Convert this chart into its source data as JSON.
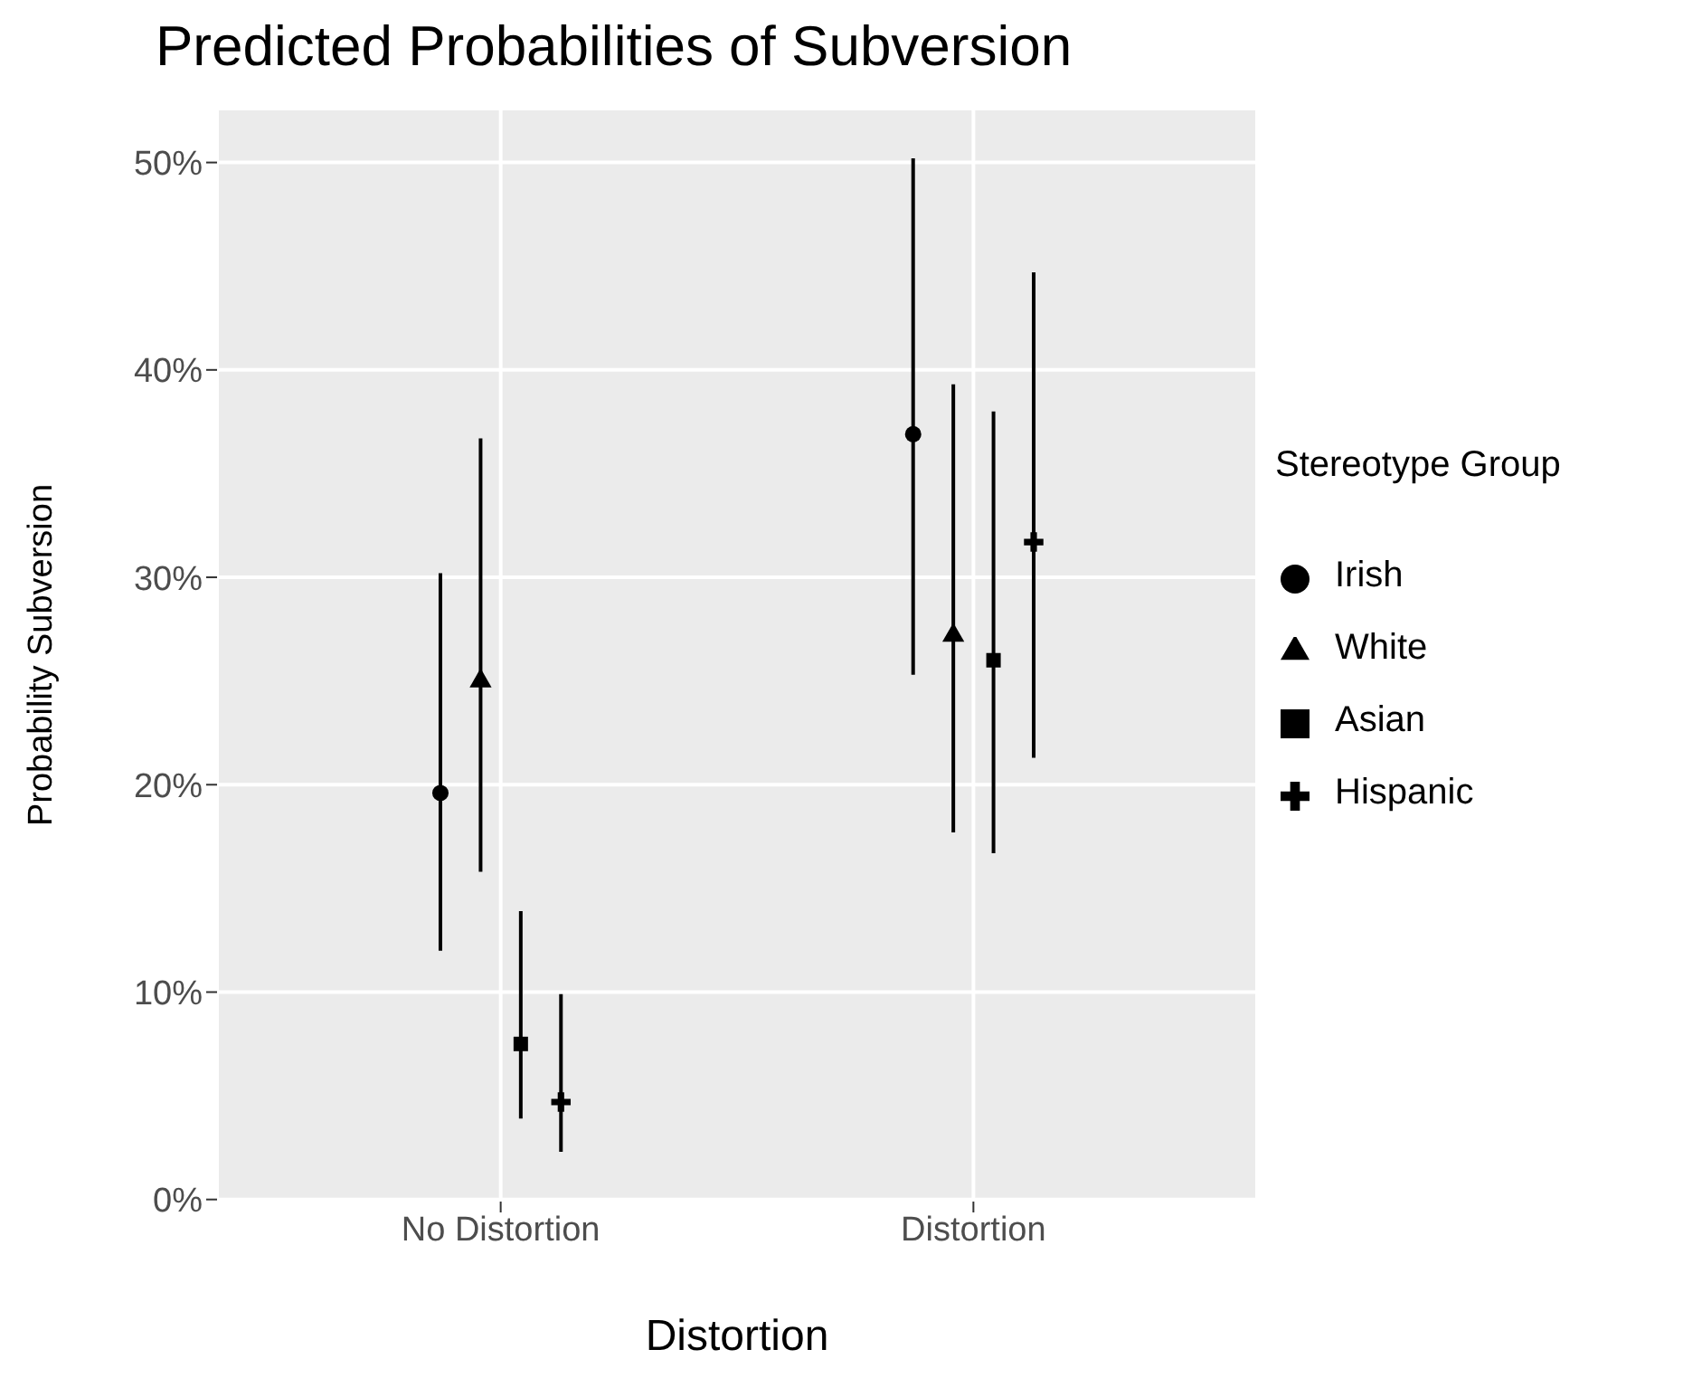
{
  "chart_data": {
    "type": "scatter",
    "title": "Predicted Probabilities of Subversion",
    "xlabel": "Distortion",
    "ylabel": "Probability Subversion",
    "legend_title": "Stereotype Group",
    "categories": [
      "No Distortion",
      "Distortion"
    ],
    "ylim": [
      -0.1,
      52.6
    ],
    "yticks": [
      {
        "value": 0,
        "label": "0%"
      },
      {
        "value": 10,
        "label": "10%"
      },
      {
        "value": 20,
        "label": "20%"
      },
      {
        "value": 30,
        "label": "30%"
      },
      {
        "value": 40,
        "label": "40%"
      },
      {
        "value": 50,
        "label": "50%"
      }
    ],
    "grid": true,
    "legend": "right",
    "series": [
      {
        "name": "Irish",
        "color": "#000000",
        "marker": "circle",
        "values": [
          19.6,
          36.9
        ],
        "errors": [
          [
            12.0,
            30.2
          ],
          [
            25.3,
            50.2
          ]
        ]
      },
      {
        "name": "White",
        "color": "#000000",
        "marker": "triangle",
        "values": [
          25.0,
          27.2
        ],
        "errors": [
          [
            15.8,
            36.7
          ],
          [
            17.7,
            39.3
          ]
        ]
      },
      {
        "name": "Asian",
        "color": "#000000",
        "marker": "square",
        "values": [
          7.5,
          26.0
        ],
        "errors": [
          [
            3.9,
            13.9
          ],
          [
            16.7,
            38.0
          ]
        ]
      },
      {
        "name": "Hispanic",
        "color": "#000000",
        "marker": "cross",
        "values": [
          4.7,
          31.7
        ],
        "errors": [
          [
            2.3,
            9.9
          ],
          [
            21.3,
            44.7
          ]
        ]
      }
    ]
  }
}
